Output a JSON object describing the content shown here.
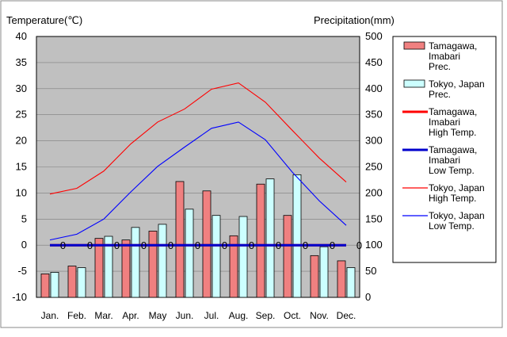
{
  "chart_data": {
    "type": "bar",
    "title": "",
    "left_axis_label": "Temperature(℃)",
    "right_axis_label": "Precipitation(mm)",
    "categories": [
      "Jan.",
      "Feb.",
      "Mar.",
      "Apr.",
      "May",
      "Jun.",
      "Jul.",
      "Aug.",
      "Sep.",
      "Oct.",
      "Nov.",
      "Dec."
    ],
    "left_ticks": [
      "40",
      "35",
      "30",
      "25",
      "20",
      "15",
      "10",
      "5",
      "0",
      "-5",
      "-10"
    ],
    "right_ticks": [
      "500",
      "450",
      "400",
      "350",
      "300",
      "250",
      "200",
      "150",
      "100",
      "50",
      "0"
    ],
    "ylim_temp": [
      -10,
      40
    ],
    "ylim_prec": [
      0,
      500
    ],
    "zero_marker_label": "0",
    "series": [
      {
        "name": "Tamagawa, Imabari Prec.",
        "legend_lines": [
          "Tamagawa,",
          "Imabari",
          "Prec."
        ],
        "kind": "bar",
        "axis": "right",
        "color": "#f08080",
        "values": [
          45,
          60,
          113,
          110,
          127,
          222,
          204,
          118,
          217,
          157,
          80,
          70
        ]
      },
      {
        "name": "Tokyo, Japan Prec.",
        "legend_lines": [
          "Tokyo, Japan",
          "Prec."
        ],
        "kind": "bar",
        "axis": "right",
        "color": "#ccffff",
        "values": [
          48,
          57,
          117,
          134,
          140,
          169,
          157,
          155,
          227,
          235,
          97,
          57
        ]
      },
      {
        "name": "Tamagawa, Imabari High Temp.",
        "legend_lines": [
          "Tamagawa,",
          "Imabari",
          "High Temp."
        ],
        "kind": "line",
        "axis": "left",
        "color": "#ff0000",
        "width": "thick",
        "values": [
          0,
          0,
          0,
          0,
          0,
          0,
          0,
          0,
          0,
          0,
          0,
          0
        ]
      },
      {
        "name": "Tamagawa, Imabari Low Temp.",
        "legend_lines": [
          "Tamagawa,",
          "Imabari",
          "Low Temp."
        ],
        "kind": "line",
        "axis": "left",
        "color": "#0000cc",
        "width": "thick",
        "values": [
          0,
          0,
          0,
          0,
          0,
          0,
          0,
          0,
          0,
          0,
          0,
          0
        ]
      },
      {
        "name": "Tokyo, Japan High Temp.",
        "legend_lines": [
          "Tokyo, Japan",
          "High Temp."
        ],
        "kind": "line",
        "axis": "left",
        "color": "#ff0000",
        "width": "thin",
        "values": [
          9.8,
          10.9,
          14.2,
          19.4,
          23.6,
          26.1,
          29.9,
          31.1,
          27.4,
          22.0,
          16.7,
          12.1
        ]
      },
      {
        "name": "Tokyo, Japan Low Temp.",
        "legend_lines": [
          "Tokyo, Japan",
          "Low Temp."
        ],
        "kind": "line",
        "axis": "left",
        "color": "#0000ff",
        "width": "thin",
        "values": [
          1.0,
          2.1,
          5.0,
          10.2,
          15.1,
          18.8,
          22.4,
          23.6,
          20.2,
          14.0,
          8.5,
          3.8
        ]
      }
    ]
  }
}
